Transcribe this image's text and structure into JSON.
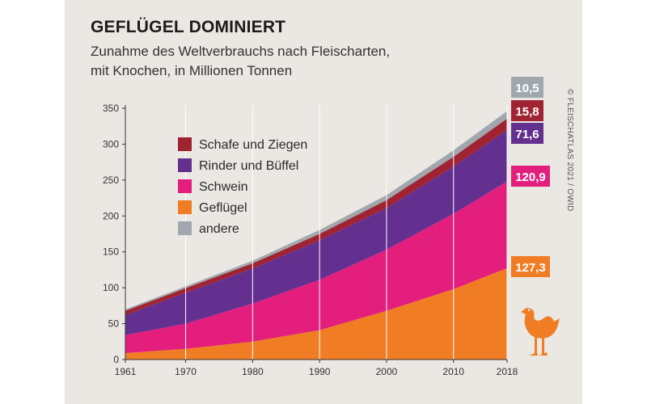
{
  "header": {
    "title": "GEFLÜGEL DOMINIERT",
    "subtitle_line1": "Zunahme des Weltverbrauchs nach Fleischarten,",
    "subtitle_line2": "mit Knochen, in Millionen Tonnen",
    "credit": "© FLEISCHATLAS 2021 / OWID"
  },
  "icons": {
    "chicken": "chicken-icon"
  },
  "chart_data": {
    "type": "area",
    "stacked": true,
    "x": [
      1961,
      1970,
      1980,
      1990,
      2000,
      2010,
      2018
    ],
    "xticks": [
      "1961",
      "1970",
      "1980",
      "1990",
      "2000",
      "2010",
      "2018"
    ],
    "yticks": [
      "0",
      "50",
      "100",
      "150",
      "200",
      "250",
      "300",
      "350"
    ],
    "ylim": [
      0,
      350
    ],
    "series": [
      {
        "name": "Geflügel",
        "color": "#f07d24",
        "values": [
          9,
          15,
          25,
          41,
          68,
          98,
          127.3
        ],
        "end_label": "127,3"
      },
      {
        "name": "Schwein",
        "color": "#e31e7d",
        "values": [
          25,
          35,
          53,
          70,
          85,
          105,
          120.9
        ],
        "end_label": "120,9"
      },
      {
        "name": "Rinder und Büffel",
        "color": "#643090",
        "values": [
          28,
          43,
          49,
          55,
          58,
          66,
          71.6
        ],
        "end_label": "71,6"
      },
      {
        "name": "Schafe und Ziegen",
        "color": "#a02332",
        "values": [
          6,
          6.5,
          7,
          9,
          11,
          13.5,
          15.8
        ],
        "end_label": "15,8"
      },
      {
        "name": "andere",
        "color": "#a0a8ae",
        "values": [
          2,
          2.5,
          3.5,
          5.5,
          7,
          9,
          10.5
        ],
        "end_label": "10,5"
      }
    ],
    "legend_order": [
      "Schafe und Ziegen",
      "Rinder und Büffel",
      "Schwein",
      "Geflügel",
      "andere"
    ],
    "legend_position": "upper-left inside plot",
    "grid": "vertical lines at labelled years"
  }
}
